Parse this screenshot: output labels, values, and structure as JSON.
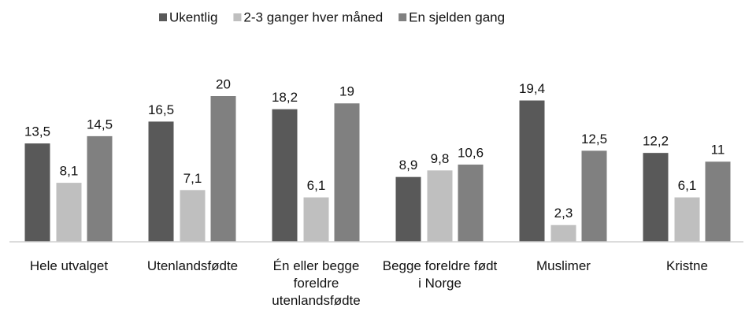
{
  "chart_data": {
    "type": "bar",
    "categories": [
      "Hele utvalget",
      "Utenlandsfødte",
      "Én eller begge foreldre utenlandsfødte",
      "Begge foreldre født i Norge",
      "Muslimer",
      "Kristne"
    ],
    "series": [
      {
        "name": "Ukentlig",
        "color": "#595959",
        "values": [
          13.5,
          16.5,
          18.2,
          8.9,
          19.4,
          12.2
        ],
        "value_labels": [
          "13,5",
          "16,5",
          "18,2",
          "8,9",
          "19,4",
          "12,2"
        ]
      },
      {
        "name": "2-3 ganger hver måned",
        "color": "#bfbfbf",
        "values": [
          8.1,
          7.1,
          6.1,
          9.8,
          2.3,
          6.1
        ],
        "value_labels": [
          "8,1",
          "7,1",
          "6,1",
          "9,8",
          "2,3",
          "6,1"
        ]
      },
      {
        "name": "En sjelden gang",
        "color": "#808080",
        "values": [
          14.5,
          20,
          19,
          10.6,
          12.5,
          11
        ],
        "value_labels": [
          "14,5",
          "20",
          "19",
          "10,6",
          "12,5",
          "11"
        ]
      }
    ],
    "ylim": [
      0,
      22
    ],
    "legend": "top"
  }
}
